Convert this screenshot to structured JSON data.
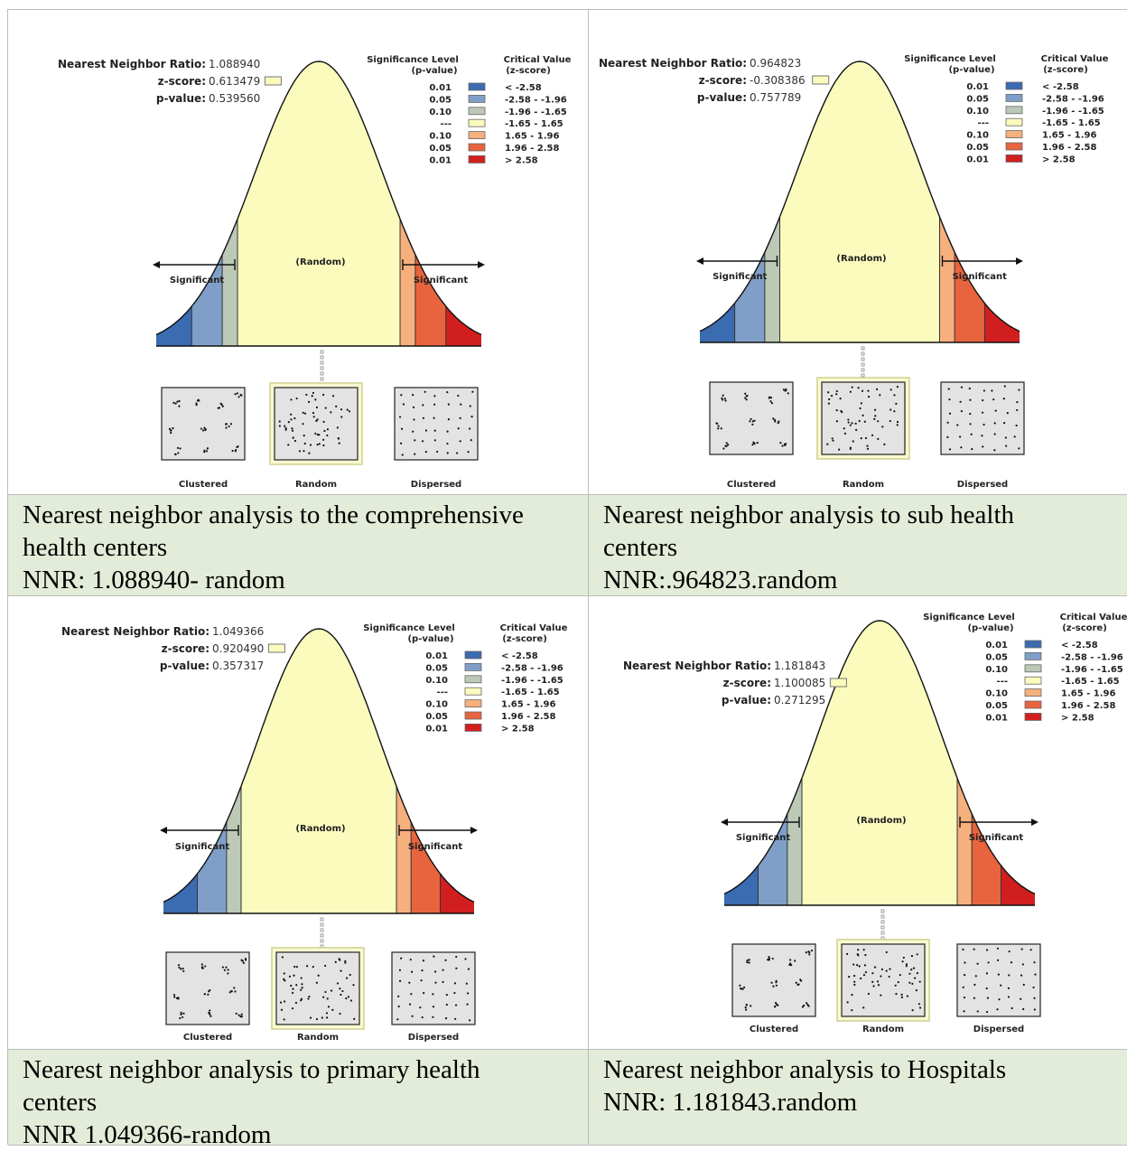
{
  "legend": {
    "sig_header": [
      "Significance Level",
      "(p-value)"
    ],
    "crit_header": [
      "Critical Value",
      "(z-score)"
    ],
    "rows": [
      {
        "p": "0.01",
        "z": "< -2.58",
        "color": "#3b6bb0"
      },
      {
        "p": "0.05",
        "z": "-2.58 - -1.96",
        "color": "#7f9fc8"
      },
      {
        "p": "0.10",
        "z": "-1.96 - -1.65",
        "color": "#bcc9b6"
      },
      {
        "p": "---",
        "z": "-1.65 - 1.65",
        "color": "#fbfbbe"
      },
      {
        "p": "0.10",
        "z": "1.65 - 1.96",
        "color": "#f6b07e"
      },
      {
        "p": "0.05",
        "z": "1.96 - 2.58",
        "color": "#e8643e"
      },
      {
        "p": "0.01",
        "z": "> 2.58",
        "color": "#d11f1f"
      }
    ]
  },
  "labels": {
    "random_center": "(Random)",
    "significant_left": "Significant",
    "significant_right": "Significant",
    "clustered": "Clustered",
    "random": "Random",
    "dispersed": "Dispersed",
    "nnr_label": "Nearest Neighbor Ratio:",
    "z_label": "z-score:",
    "p_label": "p-value:"
  },
  "panels": [
    {
      "nnr": "1.088940",
      "z_score": "0.613479",
      "p_value": "0.539560",
      "caption": [
        "Nearest neighbor analysis to the comprehensive",
        "health centers",
        "NNR: 1.088940- random"
      ]
    },
    {
      "nnr": "0.964823",
      "z_score": "-0.308386",
      "p_value": "0.757789",
      "caption": [
        "Nearest neighbor analysis to sub health",
        "centers",
        "NNR:.964823.random"
      ]
    },
    {
      "nnr": "1.049366",
      "z_score": "0.920490",
      "p_value": "0.357317",
      "caption": [
        "Nearest neighbor analysis to primary health",
        "centers",
        "NNR 1.049366-random"
      ]
    },
    {
      "nnr": "1.181843",
      "z_score": "1.100085",
      "p_value": "0.271295",
      "caption": [
        "Nearest neighbor analysis to Hospitals",
        "NNR: 1.181843.random"
      ]
    }
  ]
}
